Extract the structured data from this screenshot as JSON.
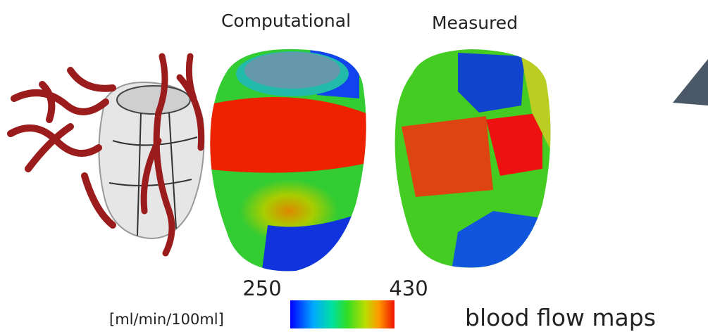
{
  "labels": {
    "computational": "Computational",
    "measured": "Measured"
  },
  "colorbar": {
    "min": "250",
    "max": "430",
    "unit": "[ml/min/100ml]"
  },
  "caption": "blood flow maps"
}
